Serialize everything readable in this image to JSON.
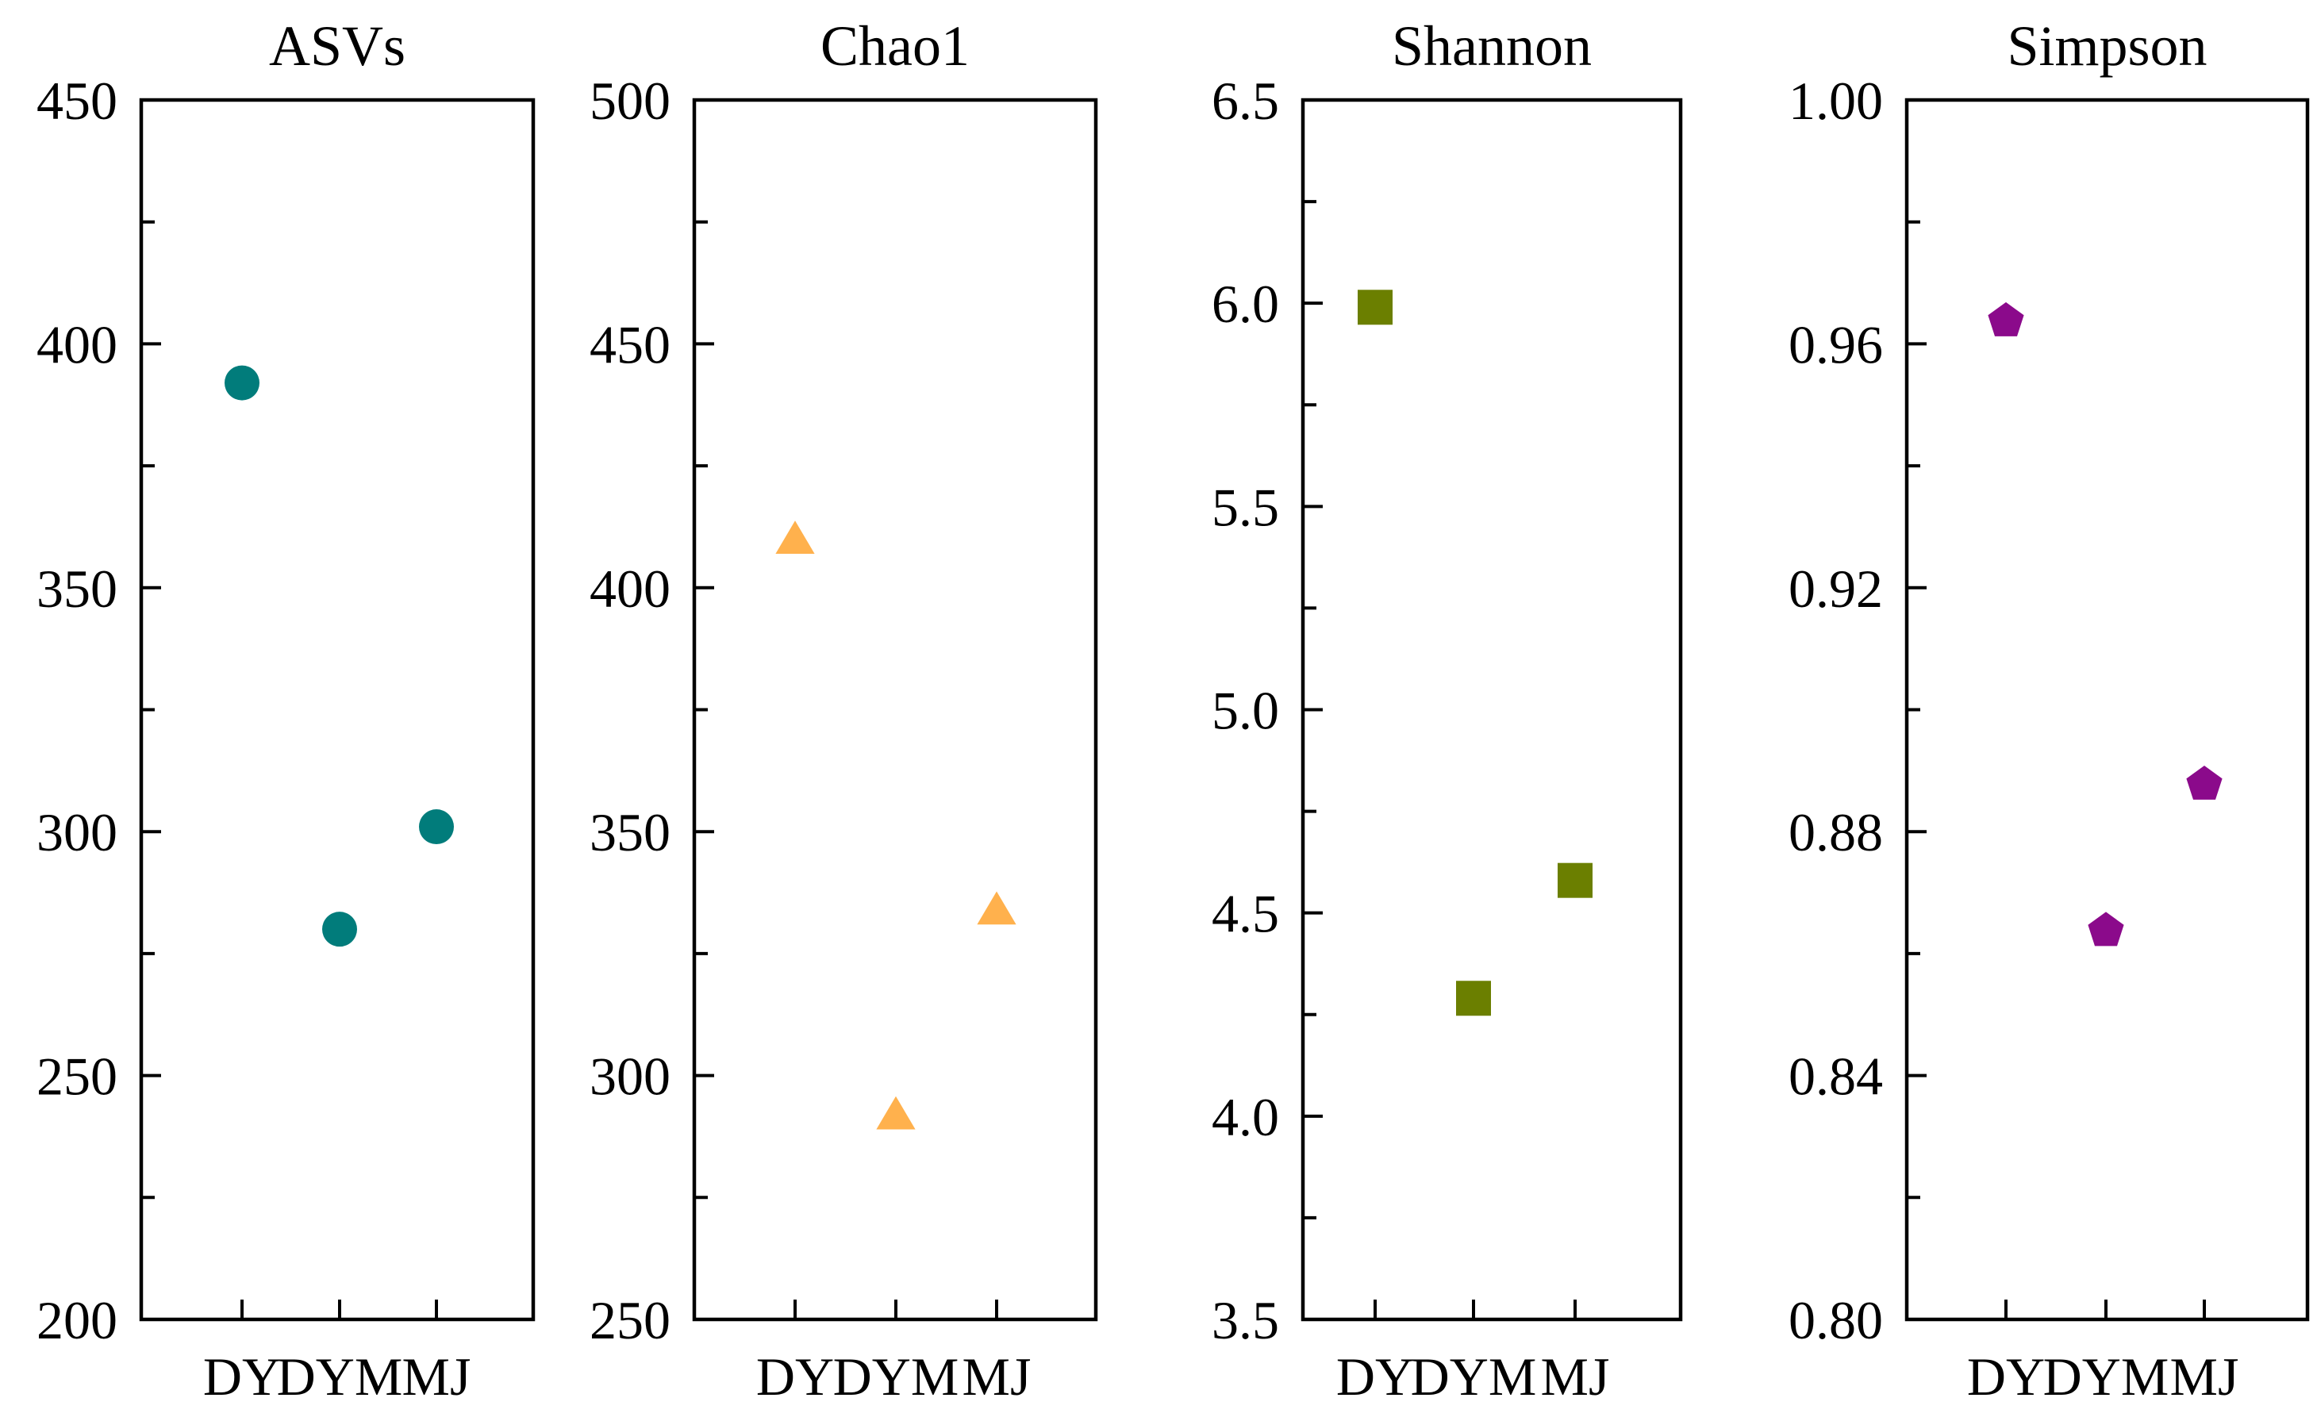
{
  "chart_data": [
    {
      "type": "scatter",
      "title": "ASVs",
      "categories": [
        "DY",
        "DYM",
        "MJ"
      ],
      "values": [
        392,
        280,
        301
      ],
      "ylim": [
        200,
        450
      ],
      "yticks": [
        "200",
        "250",
        "300",
        "350",
        "400",
        "450"
      ],
      "marker": "circle",
      "color": "#017C7B"
    },
    {
      "type": "scatter",
      "title": "Chao1",
      "categories": [
        "DY",
        "DYM",
        "MJ"
      ],
      "values": [
        410,
        292,
        334
      ],
      "ylim": [
        250,
        500
      ],
      "yticks": [
        "250",
        "300",
        "350",
        "400",
        "450",
        "500"
      ],
      "marker": "triangle",
      "color": "#FFB14D"
    },
    {
      "type": "scatter",
      "title": "Shannon",
      "categories": [
        "DY",
        "DYM",
        "MJ"
      ],
      "values": [
        5.99,
        4.29,
        4.58
      ],
      "ylim": [
        3.5,
        6.5
      ],
      "yticks": [
        "3.5",
        "4.0",
        "4.5",
        "5.0",
        "5.5",
        "6.0",
        "6.5"
      ],
      "marker": "square",
      "color": "#6B7F00"
    },
    {
      "type": "scatter",
      "title": "Simpson",
      "categories": [
        "DY",
        "DYM",
        "MJ"
      ],
      "values": [
        0.964,
        0.864,
        0.888
      ],
      "ylim": [
        0.8,
        1.0
      ],
      "yticks": [
        "0.80",
        "0.84",
        "0.88",
        "0.92",
        "0.96",
        "1.00"
      ],
      "marker": "pentagon",
      "color": "#8B0A8B"
    }
  ]
}
